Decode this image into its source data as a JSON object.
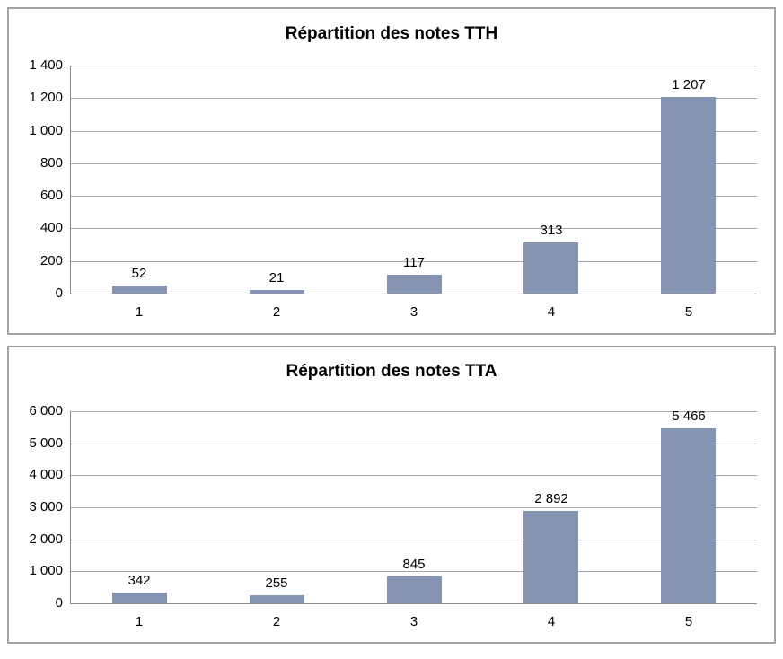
{
  "colors": {
    "bar_fill": "#8594B3",
    "gridline": "#A6A6A6",
    "axis_line": "#8C8C8C",
    "panel_border": "#A3A3A3",
    "text": "#000000",
    "background": "#FFFFFF"
  },
  "chart_data": [
    {
      "type": "bar",
      "title": "Répartition des notes TTH",
      "categories": [
        "1",
        "2",
        "3",
        "4",
        "5"
      ],
      "values": [
        52,
        21,
        117,
        313,
        1207
      ],
      "value_labels": [
        "52",
        "21",
        "117",
        "313",
        "1 207"
      ],
      "xlabel": "",
      "ylabel": "",
      "ylim": [
        0,
        1400
      ],
      "ytick_step": 200,
      "yticks": [
        0,
        200,
        400,
        600,
        800,
        1000,
        1200,
        1400
      ],
      "ytick_labels": [
        "0",
        "200",
        "400",
        "600",
        "800",
        "1 000",
        "1 200",
        "1 400"
      ],
      "grid": true,
      "legend": "none",
      "bar_color": "#8594B3"
    },
    {
      "type": "bar",
      "title": "Répartition des notes TTA",
      "categories": [
        "1",
        "2",
        "3",
        "4",
        "5"
      ],
      "values": [
        342,
        255,
        845,
        2892,
        5466
      ],
      "value_labels": [
        "342",
        "255",
        "845",
        "2 892",
        "5 466"
      ],
      "xlabel": "",
      "ylabel": "",
      "ylim": [
        0,
        6000
      ],
      "ytick_step": 1000,
      "yticks": [
        0,
        1000,
        2000,
        3000,
        4000,
        5000,
        6000
      ],
      "ytick_labels": [
        "0",
        "1 000",
        "2 000",
        "3 000",
        "4 000",
        "5 000",
        "6 000"
      ],
      "grid": true,
      "legend": "none",
      "bar_color": "#8594B3"
    }
  ]
}
